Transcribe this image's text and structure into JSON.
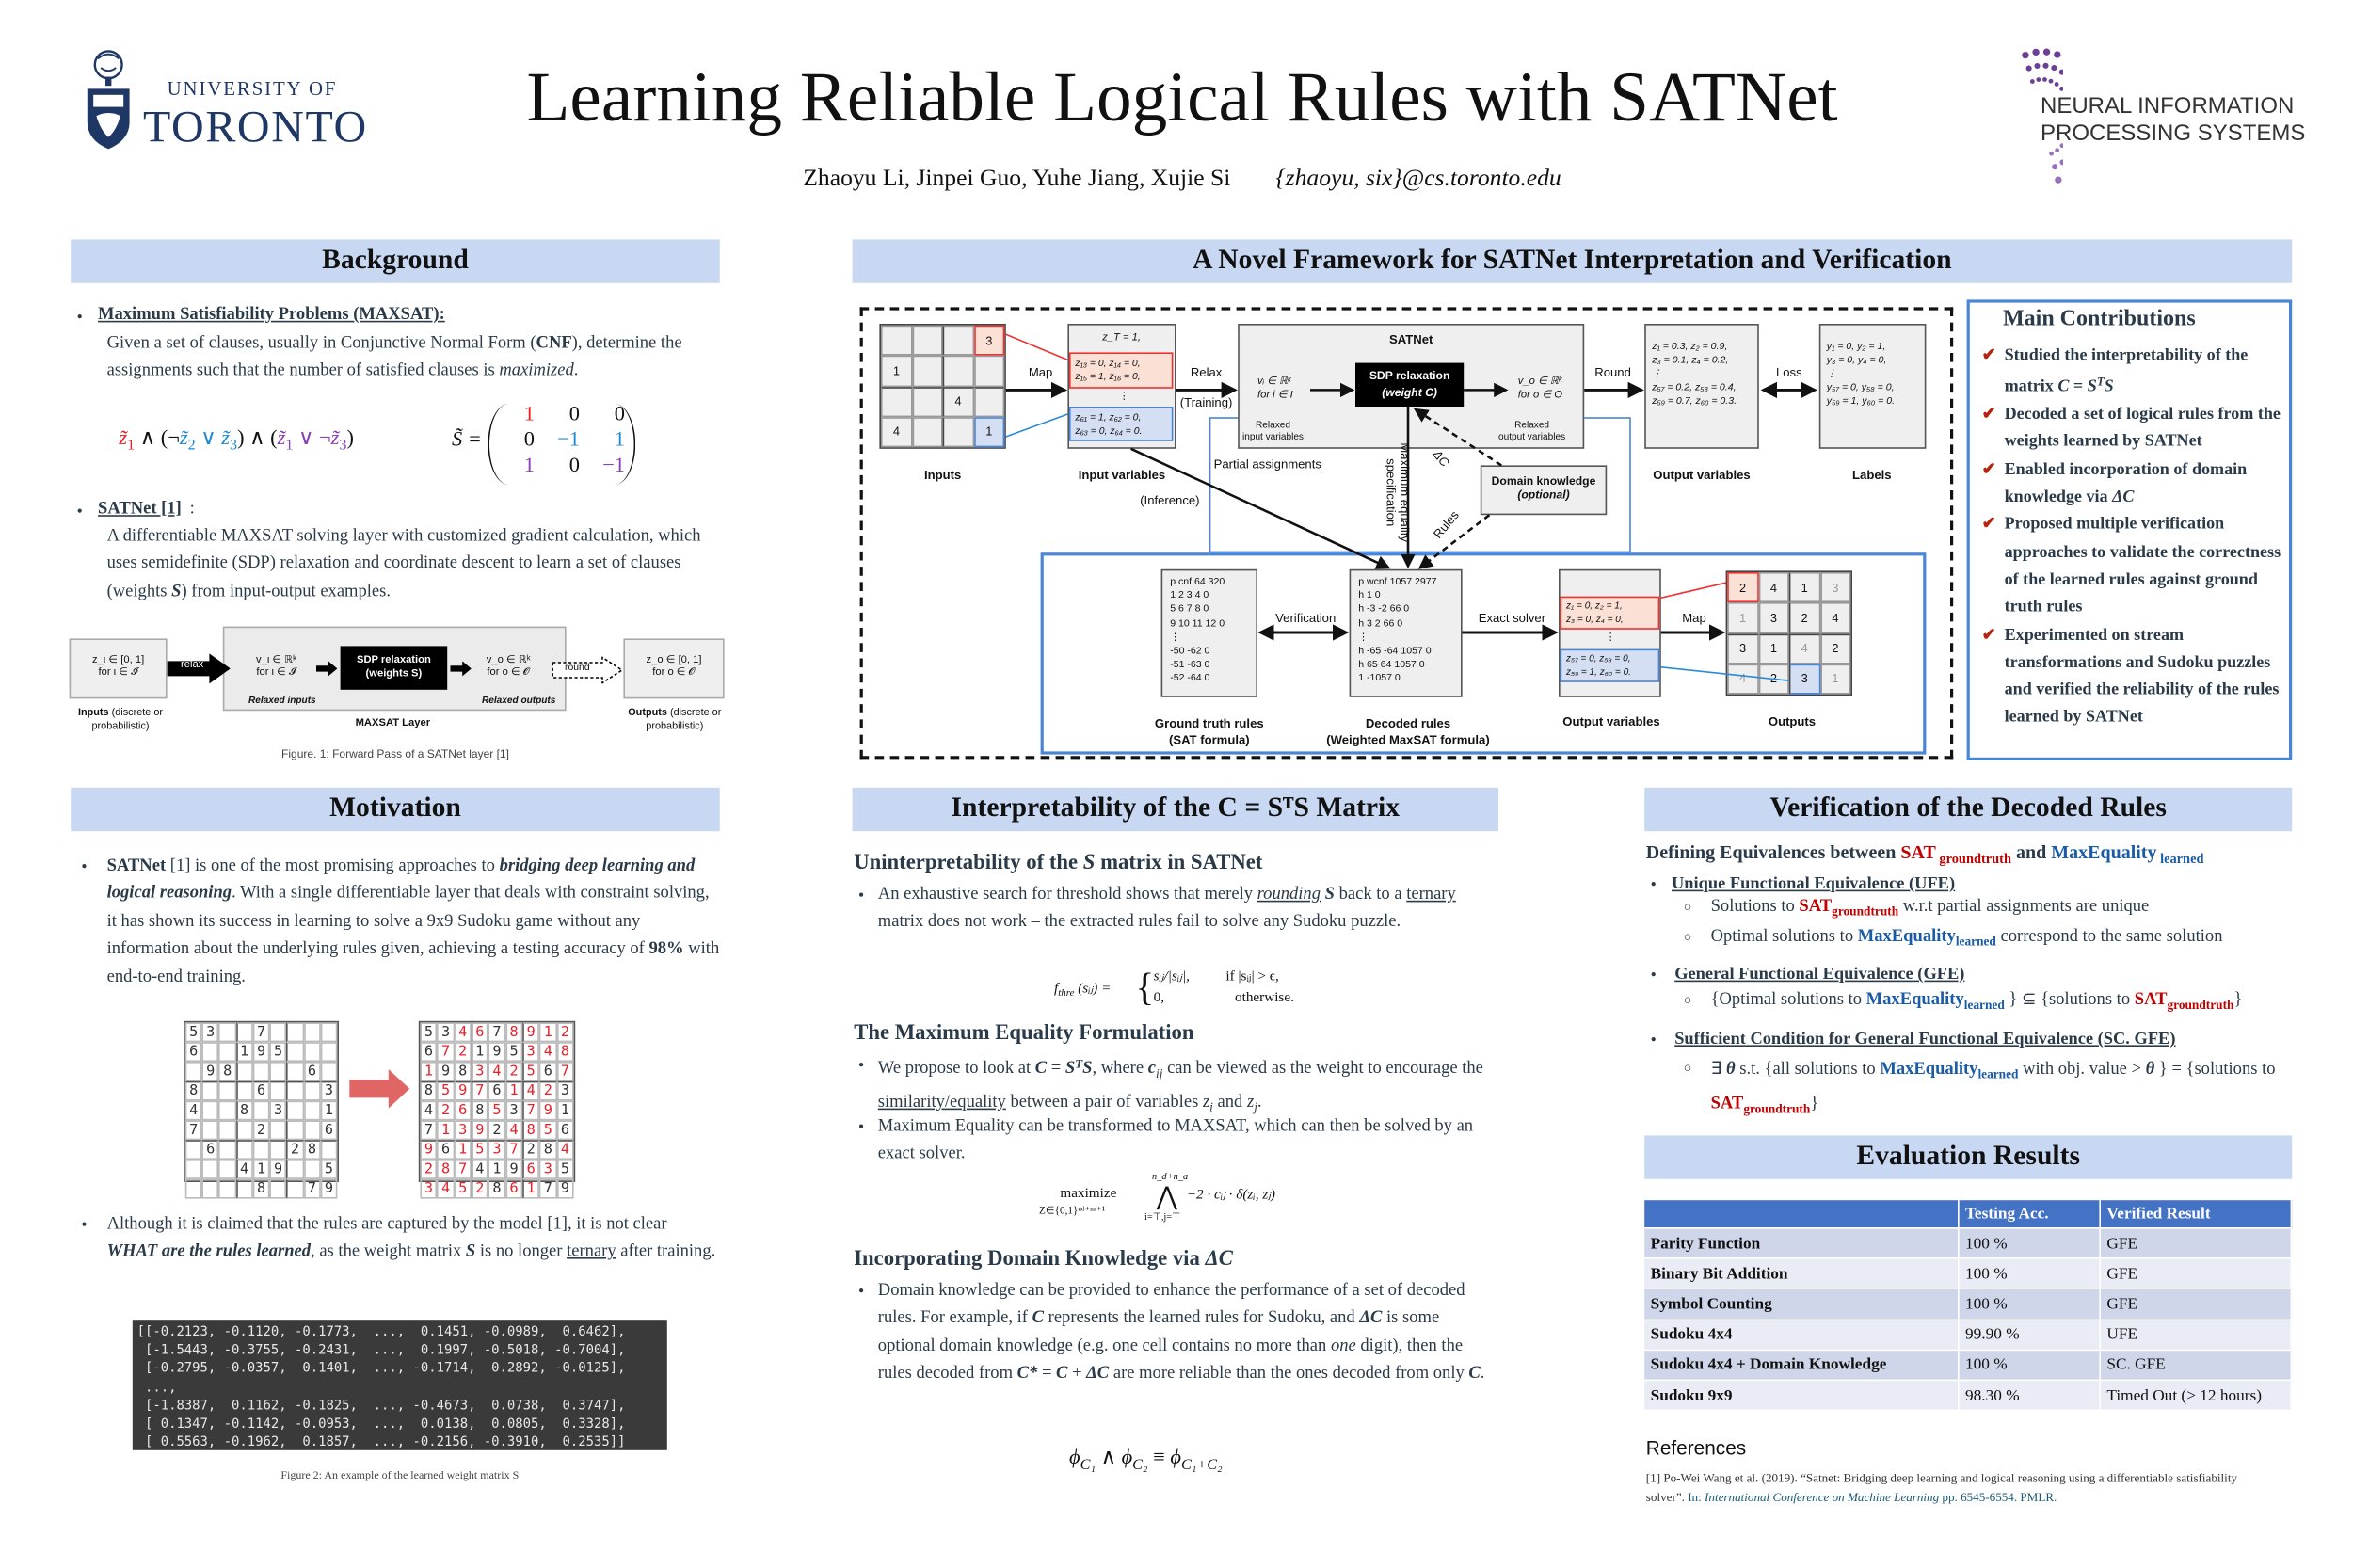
{
  "header": {
    "title": "Learning Reliable Logical Rules with SATNet",
    "authors": "Zhaoyu Li, Jinpei Guo, Yuhe Jiang, Xujie Si",
    "email": "{zhaoyu, six}@cs.toronto.edu",
    "uoft_logo": {
      "line1": "UNIVERSITY OF",
      "line2": "TORONTO",
      "color": "#1e3765"
    },
    "neurips_logo": {
      "line1": "NEURAL INFORMATION",
      "line2": "PROCESSING SYSTEMS",
      "color": "#7b4a9c"
    }
  },
  "colors": {
    "section_header_bg": "#c9d8f2",
    "accent_red": "#c00000",
    "accent_blue": "#1a5ba6",
    "table_header": "#4472c4",
    "contrib_border": "#4a86d8"
  },
  "background": {
    "heading": "Background",
    "maxsat_title": "Maximum Satisfiability Problems (MAXSAT):",
    "maxsat_text": [
      {
        "t": "Given a set of clauses, usually in Conjunctive Normal Form (",
        "s": ""
      },
      {
        "t": "CNF",
        "s": "b"
      },
      {
        "t": "), determine the assignments such that the number of satisfied clauses is ",
        "s": ""
      },
      {
        "t": "maximized",
        "s": "i"
      },
      {
        "t": ".",
        "s": ""
      }
    ],
    "formula": [
      {
        "t": "z̃",
        "s": "i redb"
      },
      {
        "t": "1",
        "s": "sb redb"
      },
      {
        "t": " ∧ (¬",
        "s": ""
      },
      {
        "t": "z̃",
        "s": "i cyan"
      },
      {
        "t": "2",
        "s": "sb cyan"
      },
      {
        "t": " ∨ ",
        "s": "cyan"
      },
      {
        "t": "z̃",
        "s": "i cyan"
      },
      {
        "t": "3",
        "s": "sb cyan"
      },
      {
        "t": ") ∧ (",
        "s": ""
      },
      {
        "t": "z̃",
        "s": "i purple"
      },
      {
        "t": "1",
        "s": "sb purple"
      },
      {
        "t": " ∨ ¬",
        "s": "purple"
      },
      {
        "t": "z̃",
        "s": "i purple"
      },
      {
        "t": "3",
        "s": "sb purple"
      },
      {
        "t": ")",
        "s": ""
      }
    ],
    "matrix_label": "S̃ =",
    "matrix": [
      [
        "1",
        "0",
        "0"
      ],
      [
        "0",
        "−1",
        "1"
      ],
      [
        "1",
        "0",
        "−1"
      ]
    ],
    "satnet_title": "SATNet [1]",
    "satnet_text": [
      {
        "t": "A differentiable MAXSAT solving layer with customized gradient calculation, which uses semidefinite (SDP) relaxation and coordinate descent to learn a set of clauses (weights ",
        "s": ""
      },
      {
        "t": "S",
        "s": "b i"
      },
      {
        "t": ") from input-output examples.",
        "s": ""
      }
    ],
    "figure1": {
      "inputs_box": [
        "z_ι ∈ [0, 1]",
        "for ι ∈ 𝓘"
      ],
      "relax": "relax",
      "vi": [
        "v_ι ∈ ℝᵏ",
        "for ι ∈ 𝓘"
      ],
      "sdp": [
        "SDP relaxation",
        "(weights S)"
      ],
      "vo": [
        "v_o ∈ ℝᵏ",
        "for o ∈ 𝓞"
      ],
      "round": "round",
      "outputs_box": [
        "z_o ∈ [0, 1]",
        "for o ∈ 𝓞"
      ],
      "relaxed_inputs": "Relaxed inputs",
      "relaxed_outputs": "Relaxed outputs",
      "layer_label": "MAXSAT Layer",
      "inputs_label_bold": "Inputs",
      "inputs_label_rest": " (discrete or probabilistic)",
      "outputs_label_bold": "Outputs",
      "outputs_label_rest": " (discrete or probabilistic)",
      "caption": "Figure. 1: Forward Pass of a SATNet layer [1]"
    }
  },
  "motivation": {
    "heading": "Motivation",
    "p1": [
      {
        "t": "SATNet",
        "s": "b"
      },
      {
        "t": " [1] is one of the most promising approaches to ",
        "s": ""
      },
      {
        "t": "bridging deep learning and logical reasoning",
        "s": "b i"
      },
      {
        "t": ". With a single differentiable layer that deals with constraint solving, it has shown its success in learning to solve a 9x9 Sudoku game without any information about the underlying rules given, achieving a testing accuracy of ",
        "s": ""
      },
      {
        "t": "98%",
        "s": "b"
      },
      {
        "t": " with end-to-end training.",
        "s": ""
      }
    ],
    "sudoku_puzzle": [
      "53..7....",
      "6..195...",
      ".98....6.",
      "8...6...3",
      "4..8.3..1",
      "7...2...6",
      ".6....28.",
      "...419..5",
      "....8..79"
    ],
    "sudoku_solution": [
      "534678912",
      "672195348",
      "198342567",
      "859761423",
      "426853791",
      "713924856",
      "961537284",
      "287419635",
      "345286179"
    ],
    "p2": [
      {
        "t": "Although it is claimed that the rules are captured by the model [1], it is not clear ",
        "s": ""
      },
      {
        "t": "WHAT are the rules learned",
        "s": "b i"
      },
      {
        "t": ", as the weight matrix ",
        "s": ""
      },
      {
        "t": "S",
        "s": "b i"
      },
      {
        "t": " is no longer ",
        "s": ""
      },
      {
        "t": "ternary",
        "s": "u"
      },
      {
        "t": " after training.",
        "s": ""
      }
    ],
    "matrix_lines": [
      "[[-0.2123, -0.1120, -0.1773,  ...,  0.1451, -0.0989,  0.6462],",
      " [-1.5443, -0.3755, -0.2431,  ...,  0.1997, -0.5018, -0.7004],",
      " [-0.2795, -0.0357,  0.1401,  ..., -0.1714,  0.2892, -0.0125],",
      " ...,",
      " [-1.8387,  0.1162, -0.1825,  ..., -0.4673,  0.0738,  0.3747],",
      " [ 0.1347, -0.1142, -0.0953,  ...,  0.0138,  0.0805,  0.3328],",
      " [ 0.5563, -0.1962,  0.1857,  ..., -0.2156, -0.3910,  0.2535]]"
    ],
    "figure2_caption": "Figure 2: An example of the learned weight matrix S"
  },
  "framework": {
    "heading": "A Novel Framework for SATNet Interpretation and Verification",
    "input_grid": [
      [
        "",
        "",
        "",
        "3"
      ],
      [
        "1",
        "",
        "",
        ""
      ],
      [
        "",
        "",
        "4",
        ""
      ],
      [
        "4",
        "",
        "",
        "1"
      ]
    ],
    "output_grid": [
      [
        "2",
        "4",
        "1",
        "3"
      ],
      [
        "1",
        "3",
        "2",
        "4"
      ],
      [
        "3",
        "1",
        "4",
        "2"
      ],
      [
        "4",
        "2",
        "3",
        "1"
      ]
    ],
    "labels": {
      "inputs": "Inputs",
      "input_variables": "Input variables",
      "output_variables": "Output variables",
      "labels": "Labels",
      "map": "Map",
      "relax": "Relax",
      "training": "(Training)",
      "round": "Round",
      "loss": "Loss",
      "satnet": "SATNet",
      "sdp": "SDP relaxation",
      "weight": "(weight C)",
      "vi": [
        "vᵢ ∈ ℝᵏ",
        "for i ∈ I"
      ],
      "vo": [
        "v_o ∈ ℝᵏ",
        "for o ∈ O"
      ],
      "relaxed_in": [
        "Relaxed",
        "input variables"
      ],
      "relaxed_out": [
        "Relaxed",
        "output variables"
      ],
      "partial": "Partial assignments",
      "inference": "(Inference)",
      "max_eq": [
        "Maximum equality",
        "specification"
      ],
      "delta_c": "ΔC",
      "rules": "Rules",
      "domain": "Domain knowledge",
      "optional": "(optional)",
      "verification": "Verification",
      "exact_solver": "Exact solver",
      "map2": "Map",
      "gt_rules": [
        "Ground truth rules",
        "(SAT formula)"
      ],
      "decoded_rules": [
        "Decoded rules",
        "(Weighted MaxSAT formula)"
      ],
      "output_variables2": "Output variables",
      "outputs": "Outputs"
    },
    "input_vars": {
      "top": "z_T = 1,",
      "red": [
        "z₁₃ = 0, z₁₄ = 0,",
        "z₁₅ = 1, z₁₆ = 0,"
      ],
      "blue": [
        "z₆₁ = 1, z₆₂ = 0,",
        "z₆₃ = 0, z₆₄ = 0."
      ]
    },
    "output_vars": [
      "z₁ = 0.3, z₂ = 0.9,",
      "z₃ = 0.1, z₄ = 0.2,",
      "⋮",
      "z₅₇ = 0.2, z₅₈ = 0.4,",
      "z₅₉ = 0.7, z₆₀ = 0.3."
    ],
    "label_vars": [
      "y₁ = 0, y₂ = 1,",
      "y₃ = 0, y₄ = 0,",
      "⋮",
      "y₅₇ = 0, y₅₈ = 0,",
      "y₅₉ = 1, y₆₀ = 0."
    ],
    "gt_rules": [
      "p cnf 64 320",
      "1 2 3 4 0",
      "5 6 7 8 0",
      "9 10 11 12 0",
      "⋮",
      "-50 -62 0",
      "-51 -63 0",
      "-52 -64 0"
    ],
    "decoded_rules": [
      "p wcnf 1057 2977",
      "h 1 0",
      "h -3 -2 66 0",
      "h 3 2 66 0",
      "⋮",
      "h -65 -64 1057 0",
      "h 65 64 1057 0",
      "1 -1057 0"
    ],
    "out_vars2": {
      "red": [
        "z₁ = 0, z₂ = 1,",
        "z₃ = 0, z₄ = 0,"
      ],
      "blue": [
        "z₅₇ = 0, z₅₈ = 0,",
        "z₅₉ = 1, z₆₀ = 0."
      ]
    }
  },
  "contributions": {
    "heading": "Main Contributions",
    "items": [
      [
        {
          "t": "Studied the interpretability of the matrix ",
          "s": ""
        },
        {
          "t": "C",
          "s": "i"
        },
        {
          "t": " = ",
          "s": ""
        },
        {
          "t": "S",
          "s": "i"
        },
        {
          "t": "T",
          "s": "sp i"
        },
        {
          "t": "S",
          "s": "i"
        }
      ],
      [
        {
          "t": "Decoded a set of logical rules from the weights learned by SATNet",
          "s": ""
        }
      ],
      [
        {
          "t": " Enabled incorporation of domain knowledge via ",
          "s": ""
        },
        {
          "t": "ΔC",
          "s": "i"
        }
      ],
      [
        {
          "t": "Proposed multiple verification approaches to validate the correctness of the learned rules against ground truth rules",
          "s": ""
        }
      ],
      [
        {
          "t": "Experimented on stream transformations and Sudoku puzzles and verified the reliability of the rules learned by SATNet",
          "s": ""
        }
      ]
    ]
  },
  "interpretability": {
    "heading": "Interpretability of the C = SᵀS Matrix",
    "sub1": [
      {
        "t": "Uninterpretability of the ",
        "s": ""
      },
      {
        "t": "S",
        "s": "i"
      },
      {
        "t": " matrix in SATNet",
        "s": ""
      }
    ],
    "b1": [
      {
        "t": "An exhaustive search for threshold shows that merely ",
        "s": ""
      },
      {
        "t": "rounding",
        "s": "i u"
      },
      {
        "t": " ",
        "s": ""
      },
      {
        "t": "S",
        "s": "b i"
      },
      {
        "t": " back to a ",
        "s": ""
      },
      {
        "t": "ternary",
        "s": "u"
      },
      {
        "t": " matrix does not work – the extracted rules fail to solve any Sudoku puzzle.",
        "s": ""
      }
    ],
    "f1": {
      "lhs": "f",
      "lhs_sub": "thre",
      "lhs_arg": "(sᵢⱼ) =",
      "case1": "sᵢⱼ/|sᵢⱼ|,",
      "cond1": "if |sᵢⱼ| > ϵ,",
      "case2": "0,",
      "cond2": "otherwise."
    },
    "sub2": [
      {
        "t": "The Maximum Equality Formulation",
        "s": ""
      }
    ],
    "b2": [
      {
        "t": "We propose to look at ",
        "s": ""
      },
      {
        "t": "C",
        "s": "b i"
      },
      {
        "t": " = ",
        "s": ""
      },
      {
        "t": "S",
        "s": "b i"
      },
      {
        "t": "T",
        "s": "sp b i"
      },
      {
        "t": "S",
        "s": "b i"
      },
      {
        "t": ", where ",
        "s": ""
      },
      {
        "t": "c",
        "s": "b i"
      },
      {
        "t": "ij",
        "s": "sb i"
      },
      {
        "t": " can be viewed as the weight to encourage the ",
        "s": ""
      },
      {
        "t": "similarity/equality",
        "s": "u"
      },
      {
        "t": " between a pair of variables ",
        "s": ""
      },
      {
        "t": "z",
        "s": "i"
      },
      {
        "t": "i",
        "s": "sb i"
      },
      {
        "t": " and ",
        "s": ""
      },
      {
        "t": "z",
        "s": "i"
      },
      {
        "t": "j",
        "s": "sb i"
      },
      {
        "t": ".",
        "s": ""
      }
    ],
    "b3": [
      {
        "t": "Maximum Equality can be transformed to MAXSAT, which can then be solved by an exact solver.",
        "s": ""
      }
    ],
    "f2": {
      "maximize": "maximize",
      "under": "Z∈{0,1}ⁿᵈ⁺ⁿᵃ⁺¹",
      "top": "n_d+n_a",
      "op": "⋀",
      "bottom": "i=⊤,j=⊤",
      "body": "−2 · cᵢⱼ · δ(zᵢ, zⱼ)"
    },
    "sub3": [
      {
        "t": "Incorporating Domain Knowledge via ",
        "s": ""
      },
      {
        "t": "ΔC",
        "s": "i"
      }
    ],
    "b4": [
      {
        "t": "Domain knowledge can be provided to enhance the performance of a set of decoded rules. For example, if ",
        "s": ""
      },
      {
        "t": "C",
        "s": "b i"
      },
      {
        "t": " represents the learned rules for Sudoku, and ",
        "s": ""
      },
      {
        "t": "ΔC",
        "s": "b i"
      },
      {
        "t": " is some optional domain knowledge (e.g. one cell contains no more than ",
        "s": ""
      },
      {
        "t": "one",
        "s": "i"
      },
      {
        "t": " digit), then the rules decoded from ",
        "s": ""
      },
      {
        "t": "C*",
        "s": "b i"
      },
      {
        "t": " = ",
        "s": ""
      },
      {
        "t": "C",
        "s": "b i"
      },
      {
        "t": " + ",
        "s": ""
      },
      {
        "t": "ΔC",
        "s": "b i"
      },
      {
        "t": " are more reliable than the ones decoded from only ",
        "s": ""
      },
      {
        "t": "C",
        "s": "b i"
      },
      {
        "t": ".",
        "s": ""
      }
    ],
    "f3": [
      {
        "t": "ϕ",
        "s": "i"
      },
      {
        "t": "C₁",
        "s": "sb i"
      },
      {
        "t": " ∧ ",
        "s": ""
      },
      {
        "t": "ϕ",
        "s": "i"
      },
      {
        "t": "C₂",
        "s": "sb i"
      },
      {
        "t": " ≡ ",
        "s": ""
      },
      {
        "t": "ϕ",
        "s": "i"
      },
      {
        "t": "C₁+C₂",
        "s": "sb i"
      }
    ]
  },
  "verification": {
    "heading": "Verification of the Decoded Rules",
    "intro": [
      {
        "t": "Defining Equivalences between ",
        "s": ""
      },
      {
        "t": "SAT",
        "s": "red"
      },
      {
        "t": " groundtruth",
        "s": "red small2"
      },
      {
        "t": " and ",
        "s": ""
      },
      {
        "t": "MaxEquality",
        "s": "blue"
      },
      {
        "t": " learned",
        "s": "blue small2"
      }
    ],
    "ufe_title": "Unique Functional Equivalence (UFE)",
    "ufe_1": [
      {
        "t": "Solutions to ",
        "s": ""
      },
      {
        "t": "SAT",
        "s": "b red"
      },
      {
        "t": "groundtruth",
        "s": "sb b red"
      },
      {
        "t": " w.r.t partial assignments are unique",
        "s": ""
      }
    ],
    "ufe_2": [
      {
        "t": "Optimal solutions to ",
        "s": ""
      },
      {
        "t": "MaxEquality",
        "s": "b blue"
      },
      {
        "t": "learned",
        "s": "sb b blue"
      },
      {
        "t": "  correspond to the same solution",
        "s": ""
      }
    ],
    "gfe_title": "General Functional Equivalence (GFE)",
    "gfe_1": [
      {
        "t": "{Optimal solutions to ",
        "s": ""
      },
      {
        "t": "MaxEquality",
        "s": "b blue"
      },
      {
        "t": "learned",
        "s": "sb b blue"
      },
      {
        "t": " } ⊆ {solutions to ",
        "s": ""
      },
      {
        "t": "SAT",
        "s": "b red"
      },
      {
        "t": "groundtruth",
        "s": "sb b red"
      },
      {
        "t": "}",
        "s": ""
      }
    ],
    "sc_title": "Sufficient Condition for General Functional Equivalence (SC. GFE)",
    "sc_1": [
      {
        "t": "∃ ",
        "s": ""
      },
      {
        "t": "θ",
        "s": "b i"
      },
      {
        "t": " s.t. {all solutions to ",
        "s": ""
      },
      {
        "t": "MaxEquality",
        "s": "b blue"
      },
      {
        "t": "learned",
        "s": "sb b blue"
      },
      {
        "t": " with obj. value > ",
        "s": ""
      },
      {
        "t": "θ",
        "s": "b i"
      },
      {
        "t": " } = {solutions to ",
        "s": ""
      },
      {
        "t": "SAT",
        "s": "b red"
      },
      {
        "t": "groundtruth",
        "s": "sb b red"
      },
      {
        "t": "}",
        "s": ""
      }
    ]
  },
  "evaluation": {
    "heading": "Evaluation Results",
    "columns": [
      "",
      "Testing Acc.",
      "Verified Result"
    ],
    "rows": [
      [
        "Parity Function",
        "100 %",
        "GFE"
      ],
      [
        "Binary Bit Addition",
        "100 %",
        "GFE"
      ],
      [
        "Symbol Counting",
        "100 %",
        "GFE"
      ],
      [
        "Sudoku 4x4",
        "99.90 %",
        "UFE"
      ],
      [
        "Sudoku 4x4 + Domain Knowledge",
        "100 %",
        "SC. GFE"
      ],
      [
        "Sudoku 9x9",
        "98.30 %",
        "Timed Out (> 12 hours)"
      ]
    ]
  },
  "references": {
    "heading": "References",
    "items": [
      [
        {
          "t": "[1] Po-Wei Wang et al. (2019). “Satnet: Bridging deep learning and logical reasoning using a differentiable satisfiability solver”. ",
          "s": ""
        },
        {
          "t": "In: ",
          "s": "teal"
        },
        {
          "t": "International Conference on Machine Learning",
          "s": "i teal"
        },
        {
          "t": " pp. 6545-6554. PMLR.",
          "s": "teal"
        }
      ]
    ]
  }
}
